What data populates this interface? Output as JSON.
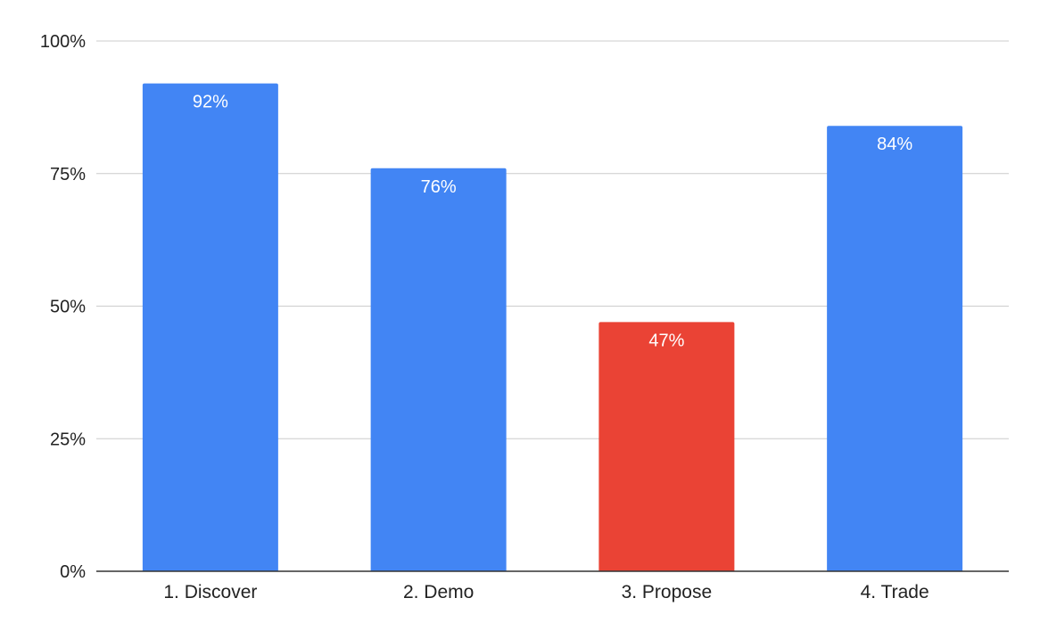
{
  "chart_data": {
    "type": "bar",
    "title": "",
    "xlabel": "",
    "ylabel": "",
    "categories": [
      "1. Discover",
      "2. Demo",
      "3. Propose",
      "4. Trade"
    ],
    "values": [
      92,
      76,
      47,
      84
    ],
    "data_labels": [
      "92%",
      "76%",
      "47%",
      "84%"
    ],
    "bar_colors": [
      "#4285F4",
      "#4285F4",
      "#EA4335",
      "#4285F4"
    ],
    "ylim": [
      0,
      100
    ],
    "yticks": [
      0,
      25,
      50,
      75,
      100
    ],
    "ytick_labels": [
      "0%",
      "25%",
      "50%",
      "75%",
      "100%"
    ],
    "grid": true,
    "legend": "none"
  }
}
